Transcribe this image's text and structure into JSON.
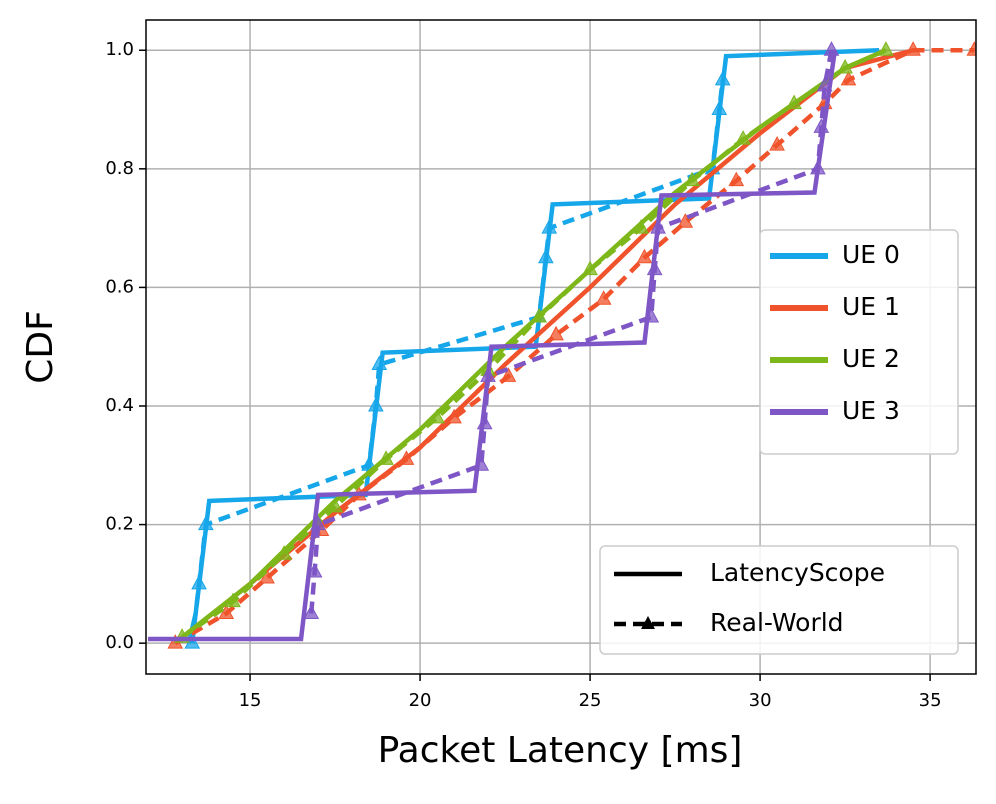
{
  "chart_data": {
    "type": "line",
    "x_label": "Packet Latency [ms]",
    "y_label": "CDF",
    "xlim": [
      11.94,
      36.35
    ],
    "ylim": [
      -0.052,
      1.051
    ],
    "xticks": [
      15,
      20,
      25,
      30,
      35
    ],
    "yticks": [
      {
        "value": 0,
        "label": "0.0"
      },
      0.2,
      0.4,
      0.6,
      0.8,
      {
        "value": 1,
        "label": "1.0"
      }
    ],
    "grid": true,
    "legend": "center right",
    "style_legend_loc": "lower right",
    "styles": [
      {
        "name": "LatencyScope",
        "dashed": false
      },
      {
        "name": "Real-World",
        "dashed": true
      }
    ],
    "series": [
      {
        "name": "UE 0",
        "color": "#16a6ea",
        "latencyscope": {
          "x": [
            13.2,
            13.4,
            13.8,
            18.4,
            18.9,
            23.4,
            23.9,
            28.5,
            29.0,
            33.5
          ],
          "values": [
            0,
            0.05,
            0.24,
            0.25,
            0.49,
            0.5,
            0.74,
            0.75,
            0.99,
            1.0
          ]
        },
        "real_world": {
          "x": [
            13.3,
            13.5,
            13.7,
            18.5,
            18.7,
            18.8,
            23.5,
            23.7,
            23.8,
            28.6,
            28.8,
            28.9
          ],
          "values": [
            0,
            0.1,
            0.2,
            0.3,
            0.4,
            0.47,
            0.55,
            0.65,
            0.7,
            0.8,
            0.9,
            0.95
          ]
        }
      },
      {
        "name": "UE 1",
        "color": "#f0532b",
        "latencyscope": {
          "x": [
            12.8,
            15,
            17.5,
            20,
            22.5,
            25,
            27.5,
            30,
            32.5,
            34.5
          ],
          "values": [
            0,
            0.1,
            0.22,
            0.33,
            0.47,
            0.6,
            0.74,
            0.86,
            0.97,
            1.0
          ]
        },
        "real_world": {
          "x": [
            12.8,
            14.3,
            15.5,
            17.1,
            18.2,
            19.6,
            21.0,
            22.6,
            24.0,
            25.4,
            26.6,
            27.8,
            29.3,
            30.5,
            31.9,
            32.6,
            34.5,
            36.3
          ],
          "values": [
            0,
            0.05,
            0.11,
            0.19,
            0.25,
            0.31,
            0.38,
            0.45,
            0.52,
            0.58,
            0.65,
            0.71,
            0.78,
            0.84,
            0.91,
            0.95,
            1.0,
            1.0
          ]
        }
      },
      {
        "name": "UE 2",
        "color": "#7db71a",
        "latencyscope": {
          "x": [
            13,
            15,
            17.5,
            20,
            22.5,
            25,
            27.5,
            30,
            32.5,
            33.7
          ],
          "values": [
            0.01,
            0.1,
            0.24,
            0.36,
            0.5,
            0.63,
            0.76,
            0.87,
            0.97,
            1.0
          ]
        },
        "real_world": {
          "x": [
            13.0,
            14.5,
            16.0,
            17.5,
            19.0,
            20.5,
            22.0,
            23.5,
            25.0,
            26.5,
            28.0,
            29.5,
            31.0,
            32.5,
            33.7
          ],
          "values": [
            0.01,
            0.07,
            0.15,
            0.23,
            0.31,
            0.38,
            0.46,
            0.55,
            0.63,
            0.7,
            0.78,
            0.85,
            0.91,
            0.97,
            1.0
          ]
        }
      },
      {
        "name": "UE 3",
        "color": "#7e56c6",
        "latencyscope": {
          "x": [
            12.0,
            16.5,
            17.0,
            21.6,
            22.1,
            26.6,
            27.1,
            31.6,
            32.2
          ],
          "values": [
            0.007,
            0.007,
            0.25,
            0.257,
            0.5,
            0.507,
            0.755,
            0.76,
            1.0
          ]
        },
        "real_world": {
          "x": [
            16.8,
            16.9,
            17.0,
            21.8,
            21.9,
            22.0,
            26.8,
            26.9,
            27.0,
            31.7,
            31.8,
            31.9,
            32.1
          ],
          "values": [
            0.05,
            0.12,
            0.2,
            0.3,
            0.37,
            0.45,
            0.55,
            0.63,
            0.7,
            0.8,
            0.87,
            0.94,
            1.0
          ]
        }
      }
    ]
  }
}
